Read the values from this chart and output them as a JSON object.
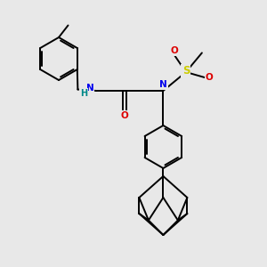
{
  "background_color": "#e8e8e8",
  "figsize": [
    3.0,
    3.0
  ],
  "dpi": 100,
  "bond_lw": 1.4,
  "colors": {
    "bond": "#000000",
    "N": "#0000ee",
    "O": "#dd0000",
    "S": "#cccc00",
    "H": "#008888"
  },
  "xlim": [
    0,
    10
  ],
  "ylim": [
    0,
    10
  ]
}
